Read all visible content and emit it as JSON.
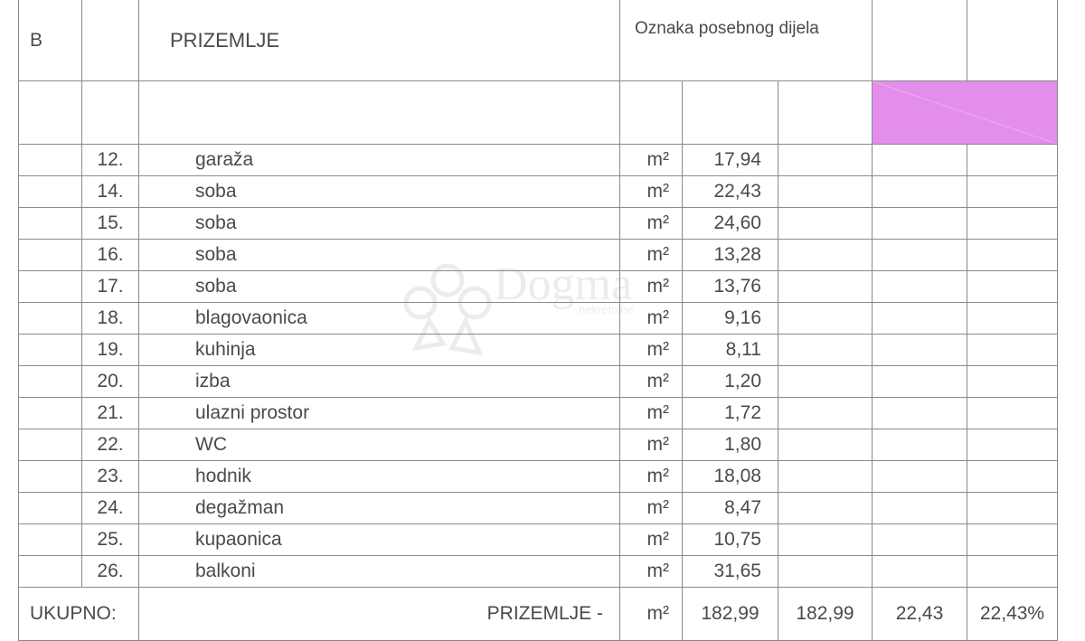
{
  "header": {
    "section": "B",
    "floor": "PRIZEMLJE",
    "label": "Oznaka posebnog dijela"
  },
  "highlight_color": "#e28eea",
  "rows": [
    {
      "no": "12.",
      "name": "garaža",
      "unit": "m²",
      "area": "17,94"
    },
    {
      "no": "14.",
      "name": "soba",
      "unit": "m²",
      "area": "22,43"
    },
    {
      "no": "15.",
      "name": "soba",
      "unit": "m²",
      "area": "24,60"
    },
    {
      "no": "16.",
      "name": "soba",
      "unit": "m²",
      "area": "13,28"
    },
    {
      "no": "17.",
      "name": "soba",
      "unit": "m²",
      "area": "13,76"
    },
    {
      "no": "18.",
      "name": "blagovaonica",
      "unit": "m²",
      "area": "9,16"
    },
    {
      "no": "19.",
      "name": "kuhinja",
      "unit": "m²",
      "area": "8,11"
    },
    {
      "no": "20.",
      "name": "izba",
      "unit": "m²",
      "area": "1,20"
    },
    {
      "no": "21.",
      "name": "ulazni prostor",
      "unit": "m²",
      "area": "1,72"
    },
    {
      "no": "22.",
      "name": "WC",
      "unit": "m²",
      "area": "1,80"
    },
    {
      "no": "23.",
      "name": "hodnik",
      "unit": "m²",
      "area": "18,08"
    },
    {
      "no": "24.",
      "name": "degažman",
      "unit": "m²",
      "area": "8,47"
    },
    {
      "no": "25.",
      "name": "kupaonica",
      "unit": "m²",
      "area": "10,75"
    },
    {
      "no": "26.",
      "name": "balkoni",
      "unit": "m²",
      "area": "31,65"
    }
  ],
  "total": {
    "label": "UKUPNO:",
    "floor": "PRIZEMLJE -",
    "unit": "m²",
    "area": "182,99",
    "area2": "182,99",
    "share": "22,43",
    "share_pct": "22,43%"
  },
  "watermark": {
    "brand": "Dogma",
    "sub": "nekretnine"
  }
}
